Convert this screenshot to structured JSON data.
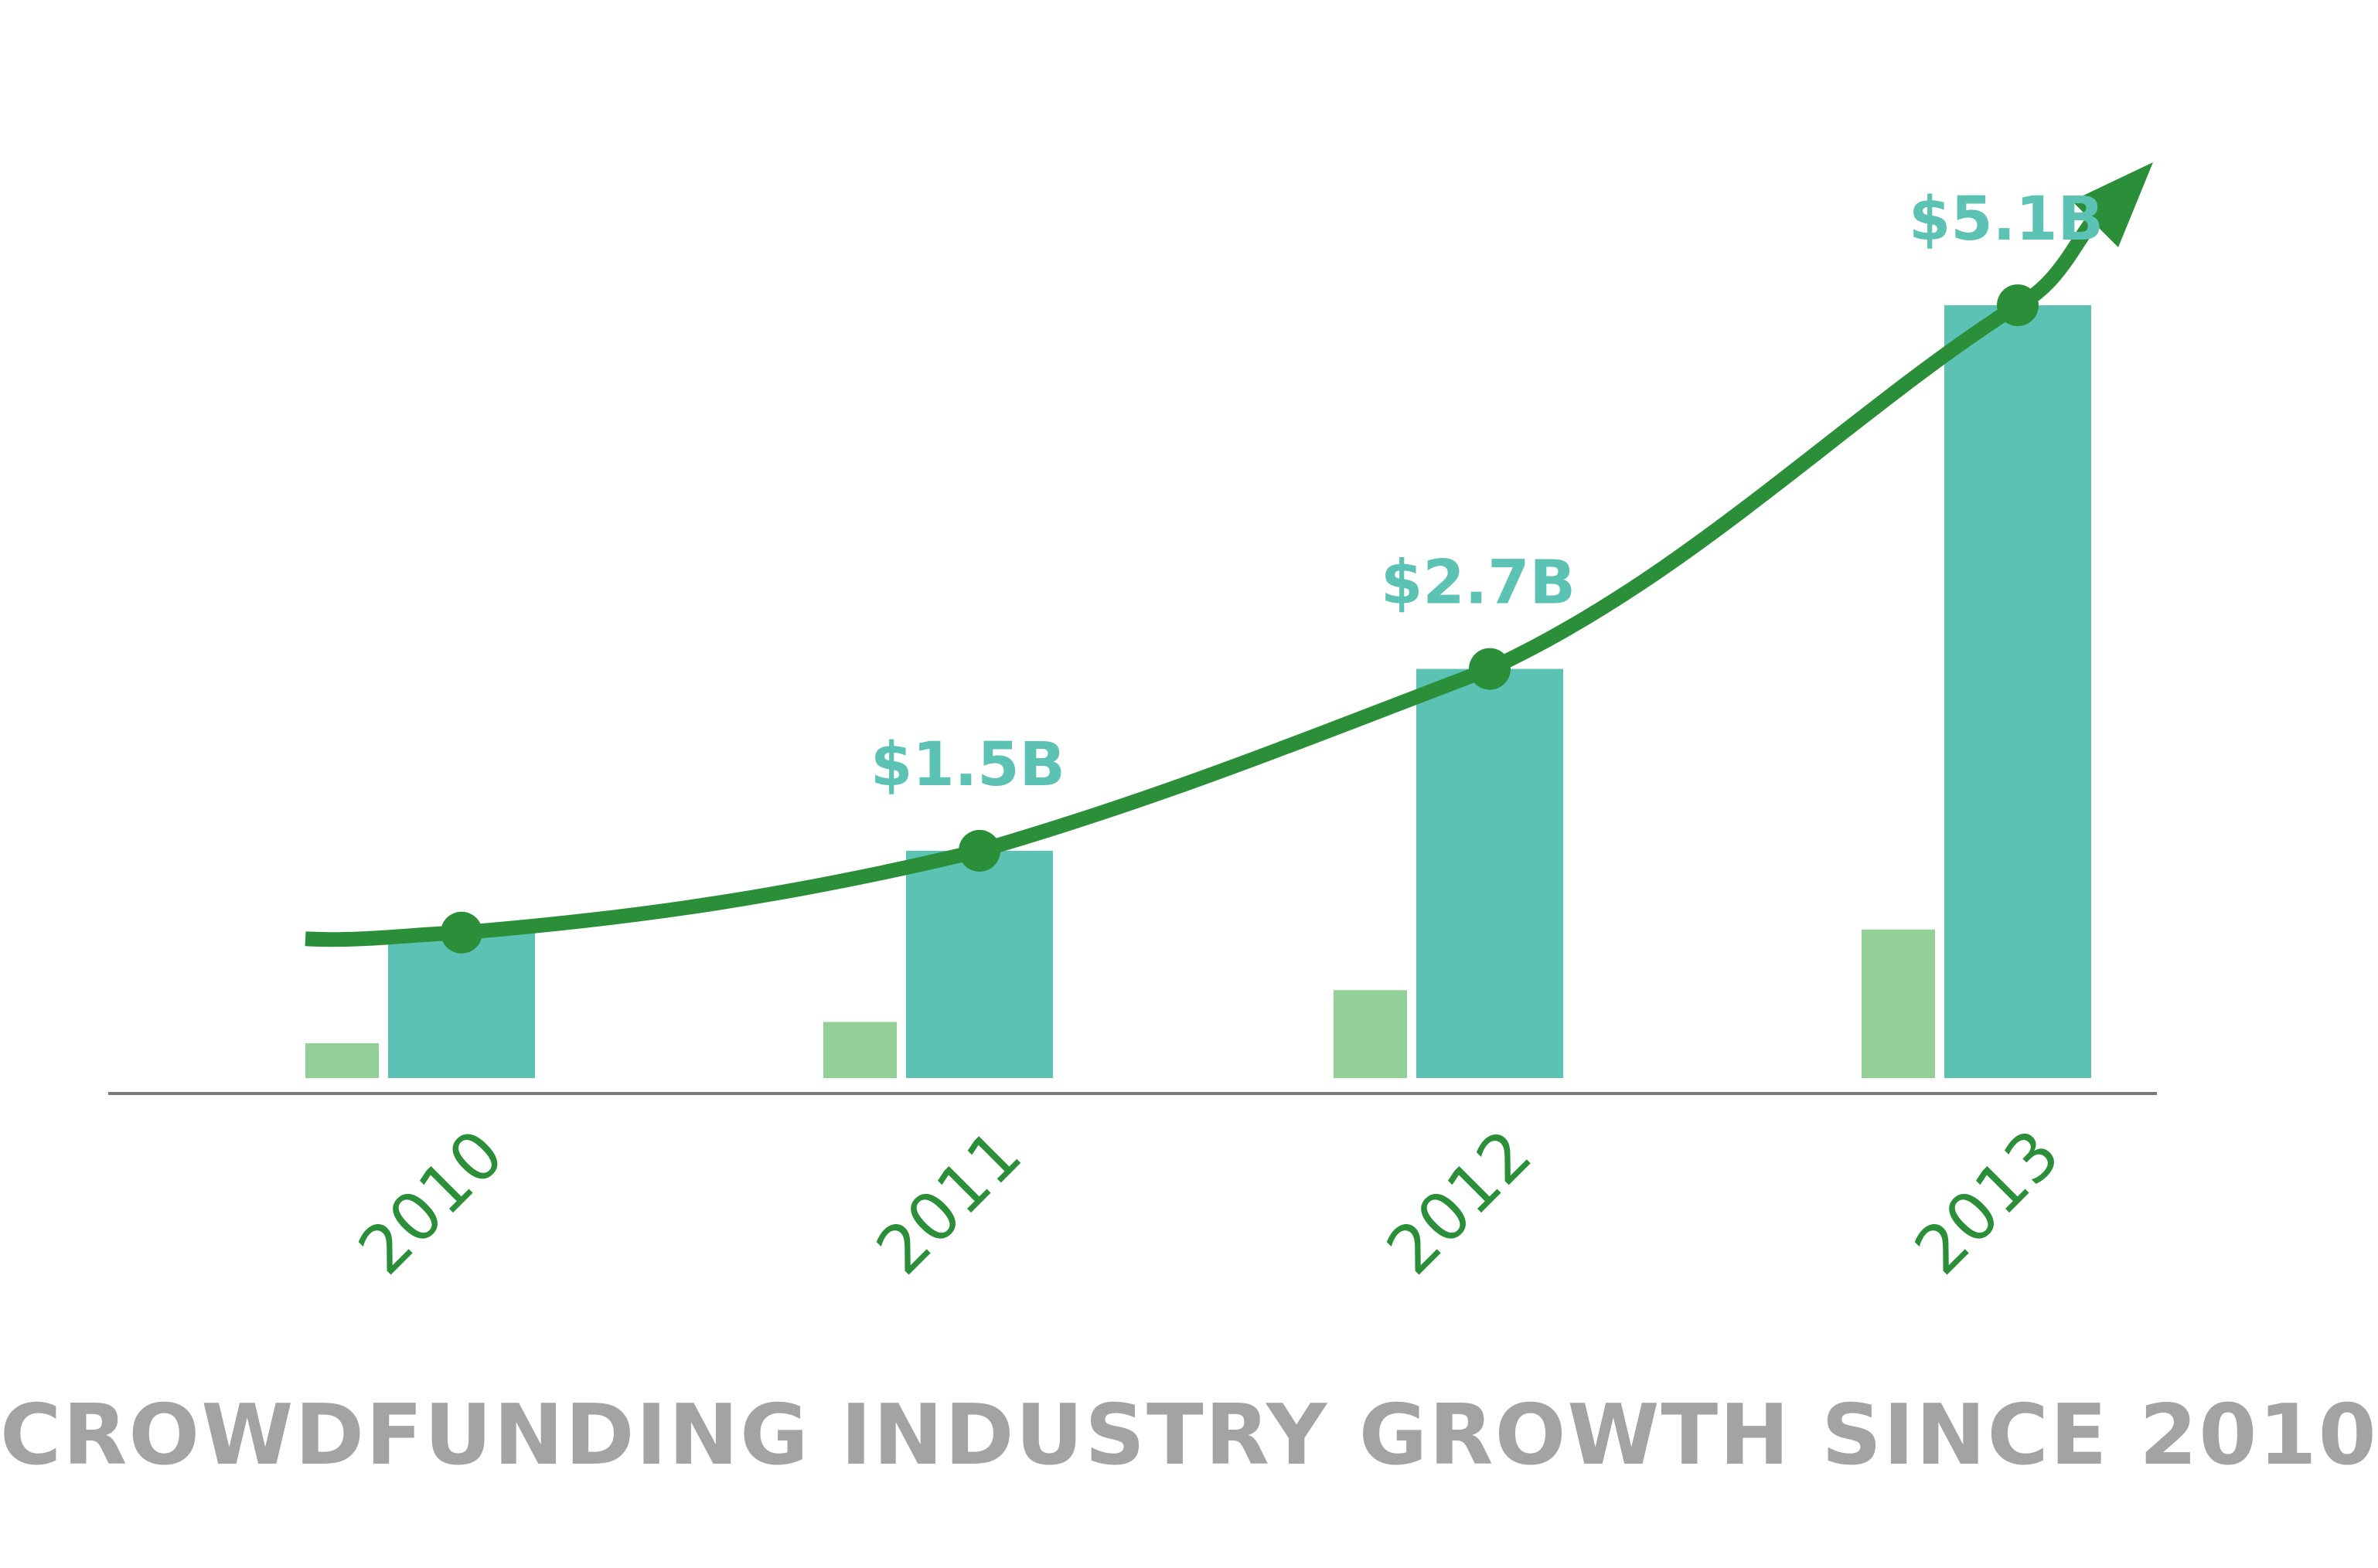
{
  "chart_data": {
    "type": "bar",
    "title": "CROWDFUNDING INDUSTRY GROWTH SINCE 2010",
    "categories": [
      "2010",
      "2011",
      "2012",
      "2013"
    ],
    "series": [
      {
        "values": [
          0.23,
          0.37,
          0.58,
          0.98
        ]
      },
      {
        "values": [
          0.96,
          1.5,
          2.7,
          5.1
        ]
      }
    ],
    "value_labels": [
      "",
      "$1.5B",
      "$2.7B",
      "$5.1B"
    ],
    "trend_line": true,
    "ylim": [
      0,
      5.1
    ],
    "grid": false,
    "legend": "none",
    "colors": {
      "primary_bar": "#5cc3b4",
      "secondary_bar": "#93d097",
      "trend": "#2b8f3a",
      "axis": "#7a7a7a",
      "title": "#a3a3a3",
      "value_label": "#5cc3b4",
      "year_label": "#2b8f3a"
    }
  }
}
